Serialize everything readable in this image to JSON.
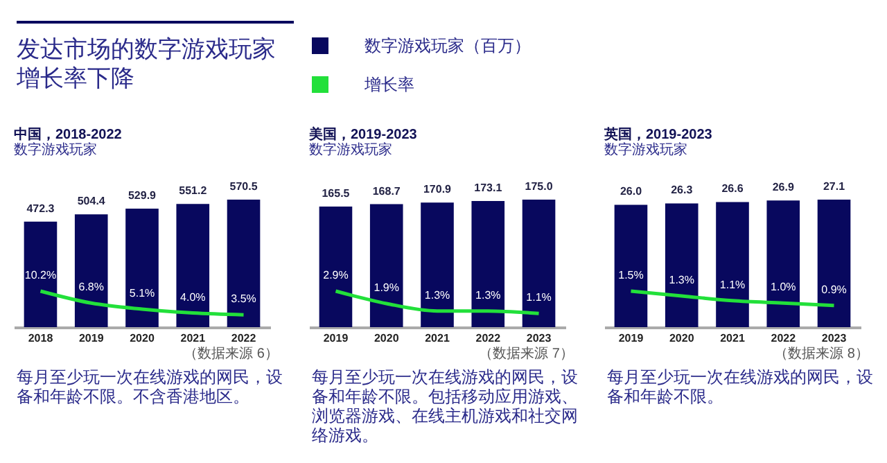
{
  "chart_data": [
    {
      "type": "other",
      "title": "发达市场的数字游戏玩家增长率下降"
    },
    {
      "type": "bar",
      "title": "中国，2018-2022",
      "subtitle": "数字游戏玩家",
      "categories": [
        "2018",
        "2019",
        "2020",
        "2021",
        "2022"
      ],
      "legend": "top",
      "series": [
        {
          "name": "数字游戏玩家（百万）",
          "color": "#08085e",
          "values": [
            472.3,
            504.4,
            529.9,
            551.2,
            570.5
          ],
          "value_labels": [
            "472.3",
            "504.4",
            "529.9",
            "551.2",
            "570.5"
          ]
        },
        {
          "name": "增长率",
          "type": "line",
          "axis": "y2",
          "color": "#22e03a",
          "values": [
            10.2,
            6.8,
            5.1,
            4.0,
            3.5
          ],
          "value_labels": [
            "10.2%",
            "6.8%",
            "5.1%",
            "4.0%",
            "3.5%"
          ]
        }
      ],
      "annotations": [
        "（数据来源 6）",
        "每月至少玩一次在线游戏的网民，设备和年龄不限。不含香港地区。"
      ]
    },
    {
      "type": "bar",
      "title": "美国，2019-2023",
      "subtitle": "数字游戏玩家",
      "categories": [
        "2019",
        "2020",
        "2021",
        "2022",
        "2023"
      ],
      "series": [
        {
          "color": "#08085e",
          "values": [
            165.5,
            168.7,
            170.9,
            173.1,
            175.0
          ],
          "value_labels": [
            "165.5",
            "168.7",
            "170.9",
            "173.1",
            "175.0"
          ]
        },
        {
          "type": "line",
          "axis": "y2",
          "color": "#22e03a",
          "values": [
            2.9,
            1.9,
            1.3,
            1.3,
            1.1
          ],
          "value_labels": [
            "2.9%",
            "1.9%",
            "1.3%",
            "1.3%",
            "1.1%"
          ]
        }
      ],
      "annotations": [
        "（数据来源 7）",
        "每月至少玩一次在线游戏的网民，设备和年龄不限。包括移动应用游戏、浏览器游戏、在线主机游戏和社交网络游戏。"
      ]
    },
    {
      "type": "bar",
      "title": "英国，2019-2023",
      "subtitle": "数字游戏玩家",
      "categories": [
        "2019",
        "2020",
        "2021",
        "2022",
        "2023"
      ],
      "series": [
        {
          "color": "#08085e",
          "values": [
            26.0,
            26.3,
            26.6,
            26.9,
            27.1
          ],
          "value_labels": [
            "26.0",
            "26.3",
            "26.6",
            "26.9",
            "27.1"
          ]
        },
        {
          "type": "line",
          "axis": "y2",
          "color": "#22e03a",
          "values": [
            1.5,
            1.3,
            1.1,
            1.0,
            0.9
          ],
          "value_labels": [
            "1.5%",
            "1.3%",
            "1.1%",
            "1.0%",
            "0.9%"
          ]
        }
      ],
      "annotations": [
        "（数据来源 8）",
        "每月至少玩一次在线游戏的网民，设备和年龄不限。"
      ]
    }
  ]
}
